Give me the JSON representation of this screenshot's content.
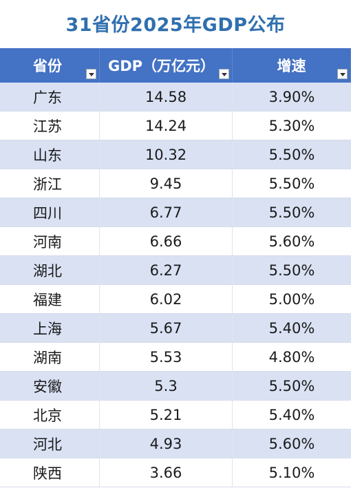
{
  "header": {
    "title": "31省份2025年GDP公布"
  },
  "table": {
    "columns": [
      "省份",
      "GDP（万亿元）",
      "增速"
    ],
    "rows": [
      [
        "广东",
        "14.58",
        "3.90%"
      ],
      [
        "江苏",
        "14.24",
        "5.30%"
      ],
      [
        "山东",
        "10.32",
        "5.50%"
      ],
      [
        "浙江",
        "9.45",
        "5.50%"
      ],
      [
        "四川",
        "6.77",
        "5.50%"
      ],
      [
        "河南",
        "6.66",
        "5.60%"
      ],
      [
        "湖北",
        "6.27",
        "5.50%"
      ],
      [
        "福建",
        "6.02",
        "5.00%"
      ],
      [
        "上海",
        "5.67",
        "5.40%"
      ],
      [
        "湖南",
        "5.53",
        "4.80%"
      ],
      [
        "安徽",
        "5.3",
        "5.50%"
      ],
      [
        "北京",
        "5.21",
        "5.40%"
      ],
      [
        "河北",
        "4.93",
        "5.60%"
      ],
      [
        "陕西",
        "3.66",
        "5.10%"
      ]
    ]
  }
}
